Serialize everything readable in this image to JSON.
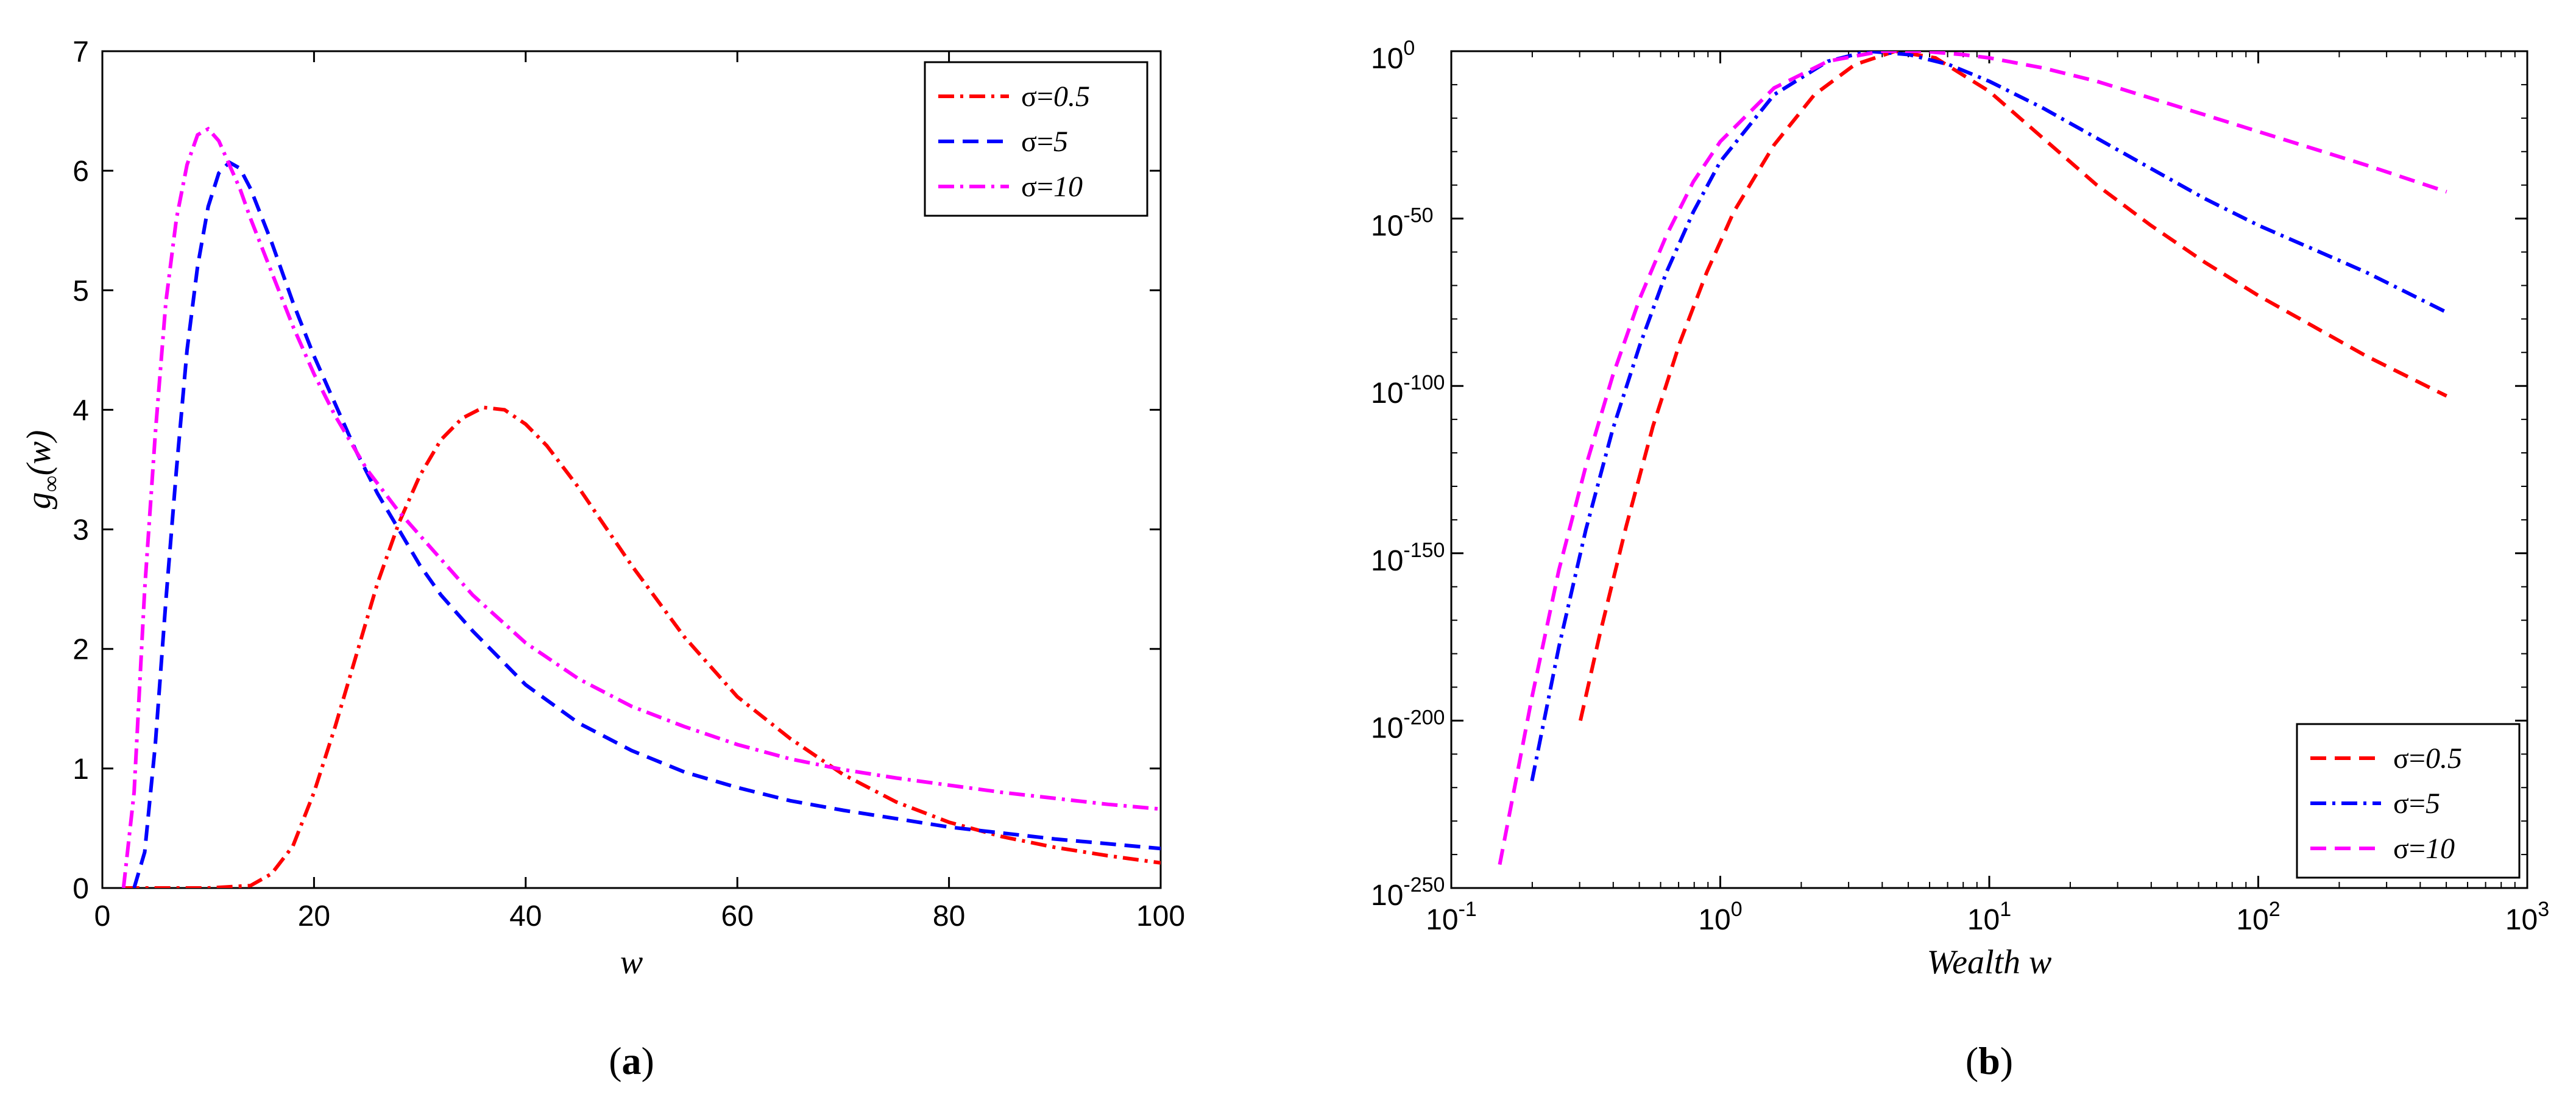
{
  "chart_data": [
    {
      "type": "line",
      "caption": "(a)",
      "caption_letter": "a",
      "xlabel": "w",
      "ylabel": "g∞(w)",
      "ylabel_main": "g",
      "ylabel_sub": "∞",
      "ylabel_rest": "(w)",
      "xlim": [
        0,
        100
      ],
      "ylim": [
        0,
        7
      ],
      "xticks": [
        0,
        20,
        40,
        60,
        80,
        100
      ],
      "yticks": [
        0,
        1,
        2,
        3,
        4,
        5,
        6,
        7
      ],
      "legend_position": "top-right",
      "series": [
        {
          "name": "σ=0.5",
          "name_prefix": "σ=",
          "name_value": "0.5",
          "color": "#ff0000",
          "dash": "dash-dot",
          "x": [
            2,
            10,
            14,
            16,
            18,
            20,
            22,
            24,
            26,
            28,
            30,
            32,
            34,
            36,
            38,
            40,
            42,
            45,
            50,
            55,
            60,
            65,
            70,
            75,
            80,
            85,
            90,
            95,
            100
          ],
          "y": [
            0,
            0,
            0.02,
            0.12,
            0.35,
            0.8,
            1.35,
            1.95,
            2.55,
            3.05,
            3.45,
            3.75,
            3.93,
            4.02,
            4.0,
            3.88,
            3.7,
            3.35,
            2.7,
            2.1,
            1.6,
            1.25,
            0.95,
            0.72,
            0.55,
            0.43,
            0.34,
            0.27,
            0.21
          ]
        },
        {
          "name": "σ=5",
          "name_prefix": "σ=",
          "name_value": "5",
          "color": "#0000ff",
          "dash": "dashed",
          "x": [
            3,
            4,
            5,
            6,
            7,
            8,
            9,
            10,
            11,
            12,
            13,
            14,
            16,
            18,
            20,
            22,
            24,
            26,
            28,
            30,
            32,
            35,
            40,
            45,
            50,
            55,
            60,
            65,
            70,
            75,
            80,
            85,
            90,
            95,
            100
          ],
          "y": [
            0,
            0.3,
            1.2,
            2.4,
            3.5,
            4.5,
            5.2,
            5.7,
            5.98,
            6.07,
            6.02,
            5.85,
            5.4,
            4.9,
            4.45,
            4.05,
            3.65,
            3.3,
            3.0,
            2.7,
            2.45,
            2.15,
            1.7,
            1.38,
            1.15,
            0.97,
            0.84,
            0.73,
            0.65,
            0.58,
            0.51,
            0.46,
            0.41,
            0.37,
            0.33
          ]
        },
        {
          "name": "σ=10",
          "name_prefix": "σ=",
          "name_value": "10",
          "color": "#ff00ff",
          "dash": "dash-dot",
          "x": [
            2,
            3,
            4,
            5,
            6,
            7,
            8,
            9,
            10,
            11,
            12,
            13,
            14,
            16,
            18,
            20,
            22,
            25,
            28,
            30,
            35,
            40,
            45,
            50,
            55,
            60,
            65,
            70,
            75,
            80,
            85,
            90,
            95,
            100
          ],
          "y": [
            0,
            0.8,
            2.5,
            3.8,
            4.9,
            5.6,
            6.05,
            6.3,
            6.35,
            6.25,
            6.05,
            5.85,
            5.6,
            5.15,
            4.7,
            4.3,
            3.95,
            3.5,
            3.15,
            2.95,
            2.45,
            2.05,
            1.75,
            1.52,
            1.35,
            1.2,
            1.08,
            0.99,
            0.92,
            0.86,
            0.8,
            0.75,
            0.7,
            0.66
          ]
        }
      ]
    },
    {
      "type": "line",
      "caption": "(b)",
      "caption_letter": "b",
      "xlabel": "Wealth w",
      "xscale": "log",
      "yscale": "log",
      "xlim_exp": [
        -1,
        3
      ],
      "ylim_exp": [
        -250,
        0
      ],
      "xtick_exponents": [
        "-1",
        "0",
        "1",
        "2",
        "3"
      ],
      "ytick_exponents": [
        "0",
        "-50",
        "-100",
        "-150",
        "-200",
        "-250"
      ],
      "tick_base": "10",
      "legend_position": "bottom-right",
      "series": [
        {
          "name": "σ=0.5",
          "name_prefix": "σ=",
          "name_value": "0.5",
          "color": "#ff0000",
          "dash": "dashed",
          "log10_x": [
            -0.52,
            -0.45,
            -0.35,
            -0.25,
            -0.15,
            -0.05,
            0.05,
            0.2,
            0.35,
            0.5,
            0.65,
            0.8,
            1.0,
            1.2,
            1.4,
            1.6,
            1.8,
            2.0,
            2.2,
            2.4,
            2.7
          ],
          "log10_y": [
            -200,
            -175,
            -142,
            -112,
            -87,
            -66,
            -48,
            -28,
            -13,
            -4,
            0,
            -2,
            -12,
            -26,
            -40,
            -52,
            -63,
            -73,
            -82,
            -91,
            -103
          ]
        },
        {
          "name": "σ=5",
          "name_prefix": "σ=",
          "name_value": "5",
          "color": "#0000ff",
          "dash": "dash-dot",
          "log10_x": [
            -0.7,
            -0.6,
            -0.5,
            -0.4,
            -0.3,
            -0.2,
            -0.1,
            0.0,
            0.2,
            0.4,
            0.55,
            0.7,
            0.85,
            1.0,
            1.2,
            1.4,
            1.6,
            1.8,
            2.0,
            2.2,
            2.4,
            2.7
          ],
          "log10_y": [
            -218,
            -178,
            -143,
            -113,
            -88,
            -66,
            -48,
            -33,
            -13,
            -3,
            0,
            -1,
            -4,
            -9,
            -17,
            -26,
            -35,
            -44,
            -52,
            -59,
            -66,
            -78
          ]
        },
        {
          "name": "σ=10",
          "name_prefix": "σ=",
          "name_value": "10",
          "color": "#ff00ff",
          "dash": "dashed",
          "log10_x": [
            -0.82,
            -0.7,
            -0.6,
            -0.5,
            -0.4,
            -0.3,
            -0.2,
            -0.1,
            0.0,
            0.2,
            0.4,
            0.6,
            0.75,
            0.9,
            1.0,
            1.2,
            1.4,
            1.6,
            1.8,
            2.0,
            2.2,
            2.4,
            2.7
          ],
          "log10_y": [
            -243,
            -193,
            -155,
            -124,
            -97,
            -74,
            -55,
            -39,
            -27,
            -11,
            -3,
            0,
            0,
            -1,
            -2,
            -5,
            -9,
            -14,
            -19,
            -24,
            -29,
            -34,
            -42
          ]
        }
      ]
    }
  ]
}
